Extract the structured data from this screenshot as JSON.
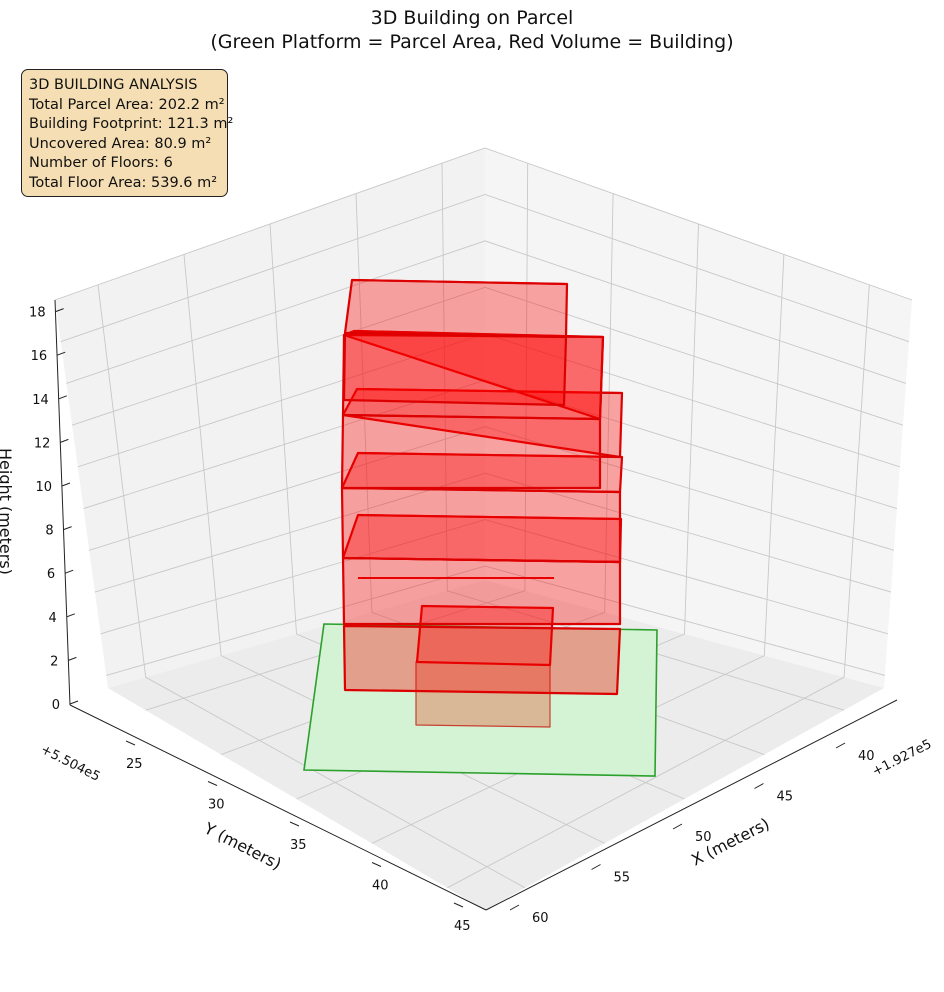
{
  "title": "3D Building on Parcel",
  "subtitle": "(Green Platform = Parcel Area, Red Volume = Building)",
  "info_box": {
    "heading": "3D BUILDING ANALYSIS",
    "lines": [
      "Total Parcel Area: 202.2 m²",
      "Building Footprint: 121.3 m²",
      "Uncovered Area: 80.9 m²",
      "Number of Floors: 6",
      "Total Floor Area: 539.6 m²"
    ],
    "background_color": "#f5deb3"
  },
  "chart_data": {
    "type": "3d-bar",
    "xlabel": "X (meters)",
    "ylabel": "Y (meters)",
    "zlabel": "Height (meters)",
    "x_offset_label": "+1.927e5",
    "y_offset_label": "+5.504e5",
    "x_ticks": [
      "40",
      "45",
      "50",
      "55",
      "60"
    ],
    "y_ticks": [
      "25",
      "30",
      "35",
      "40",
      "45"
    ],
    "z_ticks": [
      "0",
      "2",
      "4",
      "6",
      "8",
      "10",
      "12",
      "14",
      "16",
      "18"
    ],
    "colors": {
      "parcel_fill": "#d4f2d4",
      "parcel_edge": "#2ca02c",
      "building_fill": "#ff0000",
      "building_edge": "#dd0000"
    },
    "parcel": {
      "area_m2": 202.2,
      "height": 0
    },
    "building": {
      "floors": 6,
      "floor_height_m": 3,
      "footprint_m2": 121.3,
      "total_floor_area_m2": 539.6,
      "floor_tops_m": [
        3,
        6,
        9,
        12,
        15,
        18
      ]
    }
  }
}
